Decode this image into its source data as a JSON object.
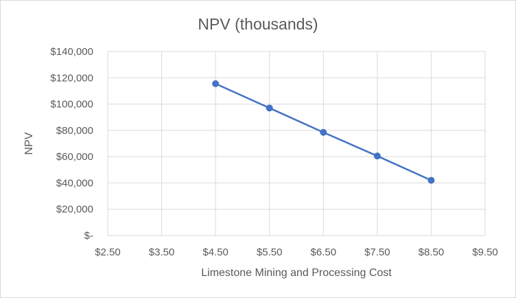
{
  "chart_data": {
    "type": "scatter",
    "title": "NPV (thousands)",
    "xlabel": "Limestone Mining and Processing Cost",
    "ylabel": "NPV",
    "xlim": [
      2.5,
      9.5
    ],
    "ylim": [
      0,
      140000
    ],
    "x_ticks": [
      2.5,
      3.5,
      4.5,
      5.5,
      6.5,
      7.5,
      8.5,
      9.5
    ],
    "x_tick_labels": [
      "$2.50",
      "$3.50",
      "$4.50",
      "$5.50",
      "$6.50",
      "$7.50",
      "$8.50",
      "$9.50"
    ],
    "y_ticks": [
      0,
      20000,
      40000,
      60000,
      80000,
      100000,
      120000,
      140000
    ],
    "y_tick_labels": [
      "$-",
      "$20,000",
      "$40,000",
      "$60,000",
      "$80,000",
      "$100,000",
      "$120,000",
      "$140,000"
    ],
    "grid": true,
    "legend": "none",
    "series": [
      {
        "name": "NPV",
        "color": "#4472c4",
        "x": [
          4.5,
          5.5,
          6.5,
          7.5,
          8.5
        ],
        "y": [
          115500,
          97000,
          78500,
          60500,
          42000
        ]
      }
    ]
  }
}
